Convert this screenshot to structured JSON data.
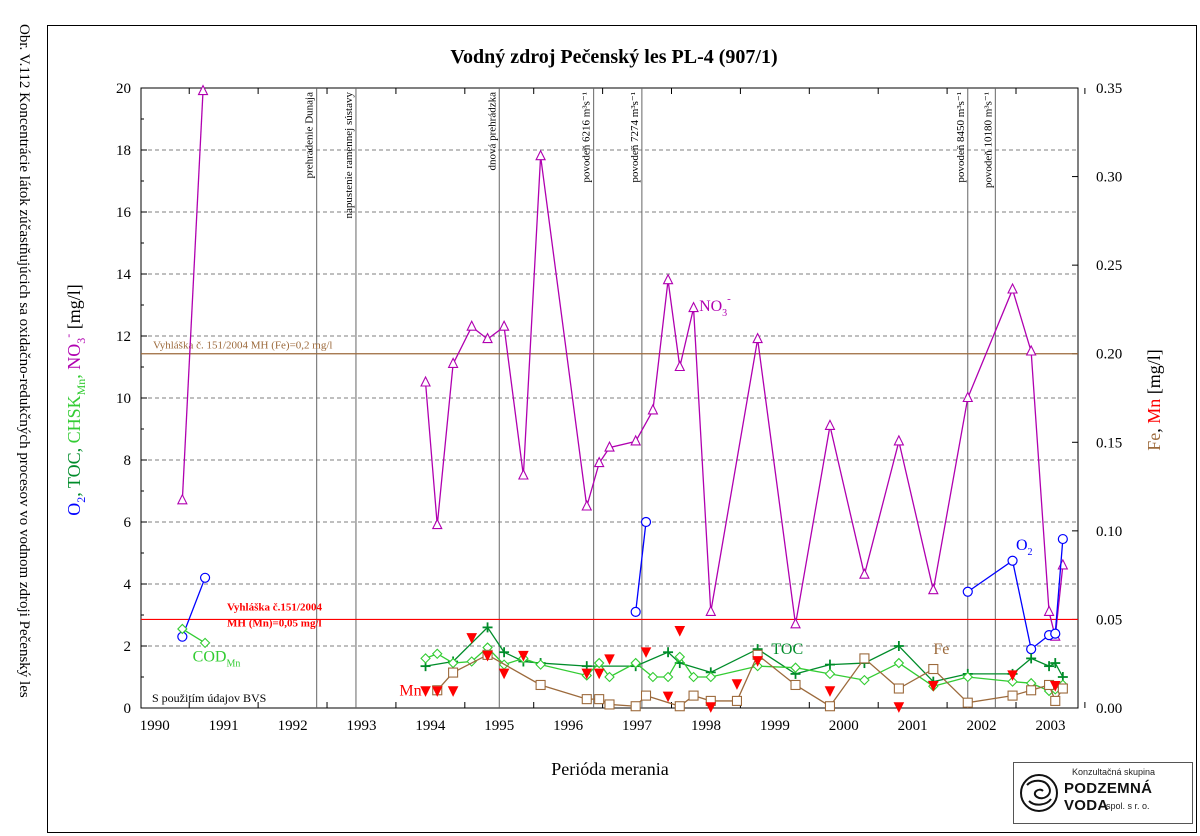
{
  "side_caption": "Obr. V.112 Koncentrácie látok zúčastňujúcich sa oxidačno-redukčných procesov vo vodnom zdroji Pečenský les",
  "logo": {
    "top_text": "Konzultačná skupina",
    "main_text": "PODZEMNÁ VODA",
    "bottom_text": "spol. s r. o."
  },
  "colors": {
    "o2": "#0000ff",
    "toc": "#008c2a",
    "cod": "#33cc33",
    "no3": "#b000b0",
    "fe": "#9c6a3c",
    "mn": "#ff0000",
    "fe_limit": "#9c6a3c",
    "mn_limit": "#ff0000"
  },
  "chart_data": {
    "type": "line",
    "title": "Vodný zdroj Pečenský les PL-4 (907/1)",
    "xlabel": "Perióda merania",
    "ylabel_left_parts": [
      {
        "text": "O",
        "color": "#0000ff"
      },
      {
        "text": "2",
        "color": "#0000ff",
        "sub": true
      },
      {
        "text": ", TOC, ",
        "color": "#008c2a"
      },
      {
        "text": "CHSK",
        "color": "#33cc33"
      },
      {
        "text": "Mn",
        "color": "#33cc33",
        "sub": true
      },
      {
        "text": ", ",
        "color": "#33cc33"
      },
      {
        "text": "NO",
        "color": "#b000b0"
      },
      {
        "text": "3",
        "color": "#b000b0",
        "sub": true
      },
      {
        "text": "-",
        "color": "#b000b0",
        "sup": true
      },
      {
        "text": "  [mg/l]",
        "color": "#000000"
      }
    ],
    "ylabel_right_parts": [
      {
        "text": "Fe",
        "color": "#9c6a3c"
      },
      {
        "text": ", ",
        "color": "#000000"
      },
      {
        "text": "Mn",
        "color": "#ff0000"
      },
      {
        "text": "  [mg/l]",
        "color": "#000000"
      }
    ],
    "xlim": [
      1989.8,
      2003.4
    ],
    "ylim_left": [
      0,
      20
    ],
    "ylim_right": [
      0,
      0.35
    ],
    "x_ticks": [
      1990,
      1991,
      1992,
      1993,
      1994,
      1995,
      1996,
      1997,
      1998,
      1999,
      2000,
      2001,
      2002,
      2003
    ],
    "y_ticks_left": [
      0,
      2,
      4,
      6,
      8,
      10,
      12,
      14,
      16,
      18,
      20
    ],
    "y_ticks_right": [
      "0.00",
      "0.05",
      "0.10",
      "0.15",
      "0.20",
      "0.25",
      "0.30",
      "0.35"
    ],
    "grid": "horizontal dashed",
    "events": [
      {
        "x": 1992.35,
        "label": "prehradenie Dunaja"
      },
      {
        "x": 1992.92,
        "label": "napustenie ramennej sústavy"
      },
      {
        "x": 1995.0,
        "label": "dnová prehrádzka"
      },
      {
        "x": 1996.37,
        "label": "povodeň 6216 m³s⁻¹"
      },
      {
        "x": 1997.07,
        "label": "povodeň 7274 m³s⁻¹"
      },
      {
        "x": 2001.8,
        "label": "povodeň 8450 m³s⁻¹"
      },
      {
        "x": 2002.2,
        "label": "povodeň 10180 m³s⁻¹"
      }
    ],
    "limits": [
      {
        "axis": "right",
        "value": 0.2,
        "label": "Vyhláška č. 151/2004 MH (Fe)=0,2 mg/l",
        "color": "#9c6a3c"
      },
      {
        "axis": "right",
        "value": 0.05,
        "label_lines": [
          "Vyhláška č.151/2004",
          "MH (Mn)=0,05 mg/l"
        ],
        "color": "#ff0000"
      }
    ],
    "note": "S použitím údajov BVS",
    "series": [
      {
        "name": "NO3-",
        "axis": "left",
        "marker": "triangle",
        "color": "#b000b0",
        "segments": [
          {
            "x": [
              1990.4,
              1990.7
            ],
            "y": [
              6.7,
              19.9
            ]
          },
          {
            "x": [
              1993.93,
              1994.1,
              1994.33,
              1994.6,
              1994.83,
              1995.07,
              1995.35,
              1995.6,
              1996.27,
              1996.45,
              1996.6,
              1996.98,
              1997.23,
              1997.45,
              1997.62,
              1997.82,
              1998.07,
              1998.75,
              1999.3,
              1999.8,
              2000.3,
              2000.8,
              2001.3,
              2001.8,
              2002.45,
              2002.72,
              2002.98,
              2003.07,
              2003.18
            ],
            "y": [
              10.5,
              5.9,
              11.1,
              12.3,
              11.9,
              12.3,
              7.5,
              17.8,
              6.5,
              7.9,
              8.4,
              8.6,
              9.6,
              13.8,
              11.0,
              12.9,
              3.1,
              11.9,
              2.7,
              9.1,
              4.3,
              8.6,
              3.8,
              10.0,
              13.5,
              11.5,
              3.1,
              2.3,
              4.6
            ]
          }
        ]
      },
      {
        "name": "O2",
        "axis": "left",
        "marker": "circle",
        "color": "#0000ff",
        "segments": [
          {
            "x": [
              1990.4,
              1990.73
            ],
            "y": [
              2.3,
              4.2
            ]
          },
          {
            "x": [
              1996.98,
              1997.13
            ],
            "y": [
              3.1,
              6.0
            ]
          },
          {
            "x": [
              2001.8,
              2002.45,
              2002.72,
              2002.98,
              2003.07,
              2003.18
            ],
            "y": [
              3.75,
              4.75,
              1.9,
              2.35,
              2.4,
              5.45
            ]
          }
        ]
      },
      {
        "name": "TOC",
        "axis": "left",
        "marker": "plus",
        "color": "#008c2a",
        "segments": [
          {
            "x": [
              1993.93,
              1994.33,
              1994.83,
              1995.07,
              1995.35,
              1995.6,
              1996.27,
              1996.98,
              1997.45,
              1997.62,
              1998.07,
              1998.75,
              1999.3,
              1999.8,
              2000.3,
              2000.8,
              2001.3,
              2001.8,
              2002.45,
              2002.72,
              2002.98,
              2003.07,
              2003.18
            ],
            "y": [
              1.35,
              1.5,
              2.6,
              1.8,
              1.5,
              1.45,
              1.35,
              1.35,
              1.8,
              1.45,
              1.15,
              1.9,
              1.1,
              1.4,
              1.45,
              2.0,
              0.85,
              1.1,
              1.1,
              1.6,
              1.35,
              1.45,
              1.0
            ]
          }
        ]
      },
      {
        "name": "CHSK Mn",
        "axis": "left",
        "marker": "diamond",
        "color": "#33cc33",
        "segments": [
          {
            "x": [
              1990.4,
              1990.73
            ],
            "y": [
              2.55,
              2.1
            ]
          },
          {
            "x": [
              1993.93,
              1994.1,
              1994.33,
              1994.6,
              1994.83,
              1995.07,
              1995.35,
              1995.6,
              1996.27,
              1996.45,
              1996.6,
              1996.98,
              1997.23,
              1997.45,
              1997.62,
              1997.82,
              1998.07,
              1998.75,
              1999.3,
              1999.8,
              2000.3,
              2000.8,
              2001.3,
              2001.8,
              2002.45,
              2002.72,
              2002.98,
              2003.07,
              2003.18
            ],
            "y": [
              1.6,
              1.75,
              1.45,
              1.5,
              1.95,
              1.4,
              1.6,
              1.4,
              1.05,
              1.45,
              1.0,
              1.45,
              1.0,
              1.0,
              1.65,
              1.0,
              1.0,
              1.35,
              1.3,
              1.1,
              0.9,
              1.45,
              0.7,
              1.0,
              0.85,
              0.8,
              0.55,
              0.6,
              0.75
            ]
          }
        ]
      },
      {
        "name": "Fe",
        "axis": "right",
        "marker": "square",
        "color": "#9c6a3c",
        "segments": [
          {
            "x": [
              1994.1,
              1994.33,
              1994.83,
              1995.6,
              1996.27,
              1996.45,
              1996.6,
              1996.98,
              1997.13,
              1997.62,
              1997.82,
              1998.07,
              1998.45,
              1998.75,
              1999.3,
              1999.8,
              2000.3,
              2000.8,
              2001.3,
              2001.8,
              2002.45,
              2002.72,
              2002.98,
              2003.07,
              2003.18
            ],
            "y": [
              0.01,
              0.02,
              0.03,
              0.013,
              0.005,
              0.005,
              0.002,
              0.001,
              0.007,
              0.001,
              0.007,
              0.004,
              0.004,
              0.03,
              0.013,
              0.001,
              0.028,
              0.011,
              0.022,
              0.003,
              0.007,
              0.01,
              0.013,
              0.004,
              0.011
            ]
          }
        ]
      },
      {
        "name": "Mn",
        "axis": "right",
        "marker": "downtriangle",
        "color": "#ff0000",
        "no_line": true,
        "segments": [
          {
            "x": [
              1993.93,
              1994.1,
              1994.33,
              1994.6,
              1994.83,
              1995.07,
              1995.35,
              1996.27,
              1996.45,
              1996.6,
              1997.13,
              1997.45,
              1997.62,
              1998.07,
              1998.45,
              1998.75,
              1999.8,
              2000.8,
              2001.3,
              2002.45,
              2003.07
            ],
            "y": [
              0.01,
              0.01,
              0.01,
              0.04,
              0.03,
              0.02,
              0.03,
              0.02,
              0.02,
              0.028,
              0.032,
              0.007,
              0.044,
              0.001,
              0.014,
              0.027,
              0.01,
              0.001,
              0.013,
              0.019,
              0.013
            ]
          }
        ]
      }
    ],
    "series_labels": [
      {
        "text": "NO",
        "sub": "3",
        "sup": "-",
        "color": "#b000b0",
        "x": 1997.9,
        "y_left": 12.8
      },
      {
        "text": "O",
        "sub": "2",
        "color": "#0000ff",
        "x": 2002.5,
        "y_left": 5.1
      },
      {
        "text": "TOC",
        "color": "#008c2a",
        "x": 1998.95,
        "y_left": 1.75
      },
      {
        "text": "Fe",
        "color": "#9c6a3c",
        "x": 2001.3,
        "y_left": 1.75
      },
      {
        "text": "COD",
        "sub": "Mn",
        "color": "#33cc33",
        "x": 1990.55,
        "y_left": 1.5
      },
      {
        "text": "Mn",
        "color": "#ff0000",
        "x": 1993.55,
        "y_left": 0.4
      }
    ]
  }
}
